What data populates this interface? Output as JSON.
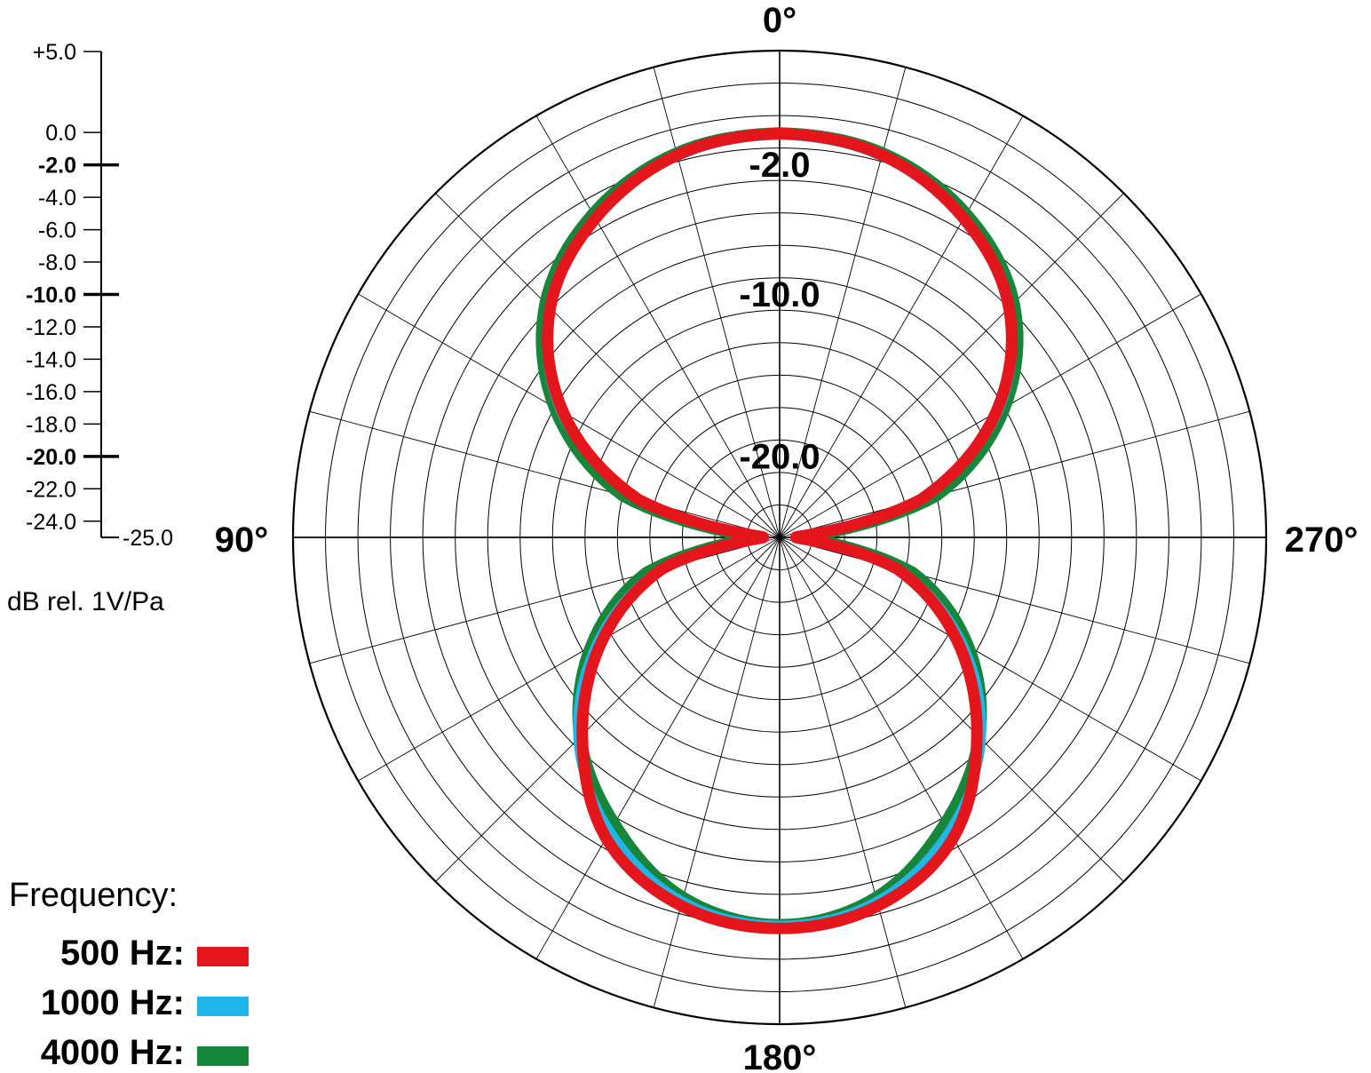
{
  "chart_data": {
    "type": "polar",
    "angle_labels": [
      "0°",
      "90°",
      "180°",
      "270°"
    ],
    "ring_labels": [
      "-2.0",
      "-10.0",
      "-20.0"
    ],
    "scale": {
      "ticks": [
        "+5.0",
        "0.0",
        "-2.0",
        "-4.0",
        "-6.0",
        "-8.0",
        "-10.0",
        "-12.0",
        "-14.0",
        "-16.0",
        "-18.0",
        "-20.0",
        "-22.0",
        "-24.0"
      ],
      "min_label": "-25.0",
      "unit_label": "dB rel. 1V/Pa",
      "range": [
        -25,
        5
      ],
      "major_ticks": [
        -2,
        -10,
        -20
      ]
    },
    "legend": {
      "title": "Frequency:",
      "placement": "bottom-left",
      "entries": [
        {
          "label": "500 Hz:",
          "color": "#e4161c"
        },
        {
          "label": "1000 Hz:",
          "color": "#21b6ea"
        },
        {
          "label": "4000 Hz:",
          "color": "#16873a"
        }
      ]
    },
    "angle_step_deg": 15,
    "ring_step_db": 2,
    "series": [
      {
        "label": "500 Hz:",
        "color": "#e4161c",
        "points_deg": [
          0,
          15,
          30,
          45,
          60,
          75,
          85,
          95,
          105,
          120,
          135,
          150,
          165,
          180,
          195,
          210,
          225,
          240,
          255,
          265,
          275,
          285,
          300,
          315,
          330,
          345,
          360
        ],
        "points_db": [
          -0.1,
          -0.6,
          -2.3,
          -5.0,
          -9.6,
          -16.0,
          -23.2,
          -23.2,
          -17.5,
          -12.4,
          -7.8,
          -3.6,
          -1.5,
          -0.9,
          -1.5,
          -3.6,
          -7.8,
          -12.4,
          -17.5,
          -23.2,
          -23.2,
          -16.0,
          -9.6,
          -5.0,
          -2.3,
          -0.6,
          -0.1
        ]
      },
      {
        "label": "1000 Hz:",
        "color": "#21b6ea",
        "points_deg": [
          0,
          15,
          30,
          45,
          60,
          75,
          85,
          95,
          105,
          120,
          135,
          150,
          165,
          180,
          195,
          210,
          225,
          240,
          255,
          265,
          275,
          285,
          300,
          315,
          330,
          345,
          360
        ],
        "points_db": [
          -0.2,
          -0.7,
          -2.3,
          -5.0,
          -9.4,
          -16.0,
          -23.0,
          -23.0,
          -17.3,
          -12.0,
          -7.4,
          -4.1,
          -1.8,
          -1.1,
          -1.8,
          -4.1,
          -7.4,
          -12.0,
          -17.3,
          -23.0,
          -23.0,
          -16.0,
          -9.4,
          -5.0,
          -2.3,
          -0.7,
          -0.2
        ]
      },
      {
        "label": "4000 Hz:",
        "color": "#16873a",
        "points_deg": [
          0,
          15,
          30,
          45,
          60,
          75,
          85,
          95,
          105,
          120,
          135,
          150,
          165,
          180,
          195,
          210,
          225,
          240,
          255,
          265,
          275,
          285,
          300,
          315,
          330,
          345,
          360
        ],
        "points_db": [
          -0.1,
          -0.5,
          -2.0,
          -4.6,
          -9.0,
          -15.0,
          -22.5,
          -22.5,
          -16.5,
          -11.6,
          -7.6,
          -4.6,
          -2.0,
          -1.1,
          -2.0,
          -4.6,
          -7.6,
          -11.6,
          -16.5,
          -22.5,
          -22.5,
          -15.0,
          -9.0,
          -4.6,
          -2.0,
          -0.5,
          -0.1
        ]
      }
    ]
  }
}
